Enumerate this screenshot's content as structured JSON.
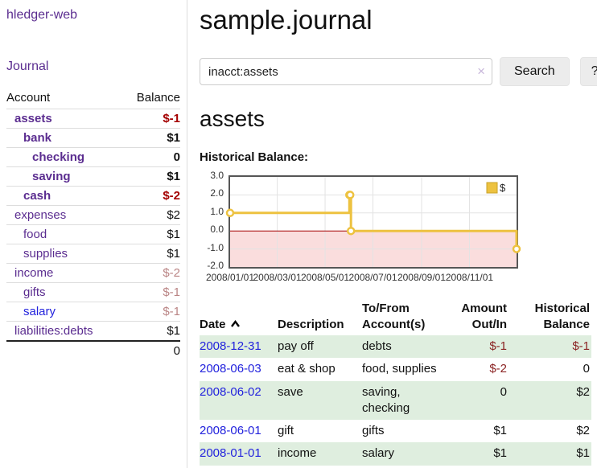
{
  "app": {
    "brand": "hledger-web",
    "nav_journal": "Journal"
  },
  "sidebar": {
    "accounts_header": {
      "account": "Account",
      "balance": "Balance"
    },
    "accounts": [
      {
        "label": "assets",
        "depth": 1,
        "bold": true,
        "blue": false,
        "balance": "$-1",
        "balance_class": "neg"
      },
      {
        "label": "bank",
        "depth": 2,
        "bold": true,
        "blue": false,
        "balance": "$1",
        "balance_class": ""
      },
      {
        "label": "checking",
        "depth": 3,
        "bold": true,
        "blue": false,
        "balance": "0",
        "balance_class": ""
      },
      {
        "label": "saving",
        "depth": 3,
        "bold": true,
        "blue": false,
        "balance": "$1",
        "balance_class": ""
      },
      {
        "label": "cash",
        "depth": 2,
        "bold": true,
        "blue": false,
        "balance": "$-2",
        "balance_class": "neg"
      },
      {
        "label": "expenses",
        "depth": 1,
        "bold": false,
        "blue": false,
        "balance": "$2",
        "balance_class": ""
      },
      {
        "label": "food",
        "depth": 2,
        "bold": false,
        "blue": false,
        "balance": "$1",
        "balance_class": ""
      },
      {
        "label": "supplies",
        "depth": 2,
        "bold": false,
        "blue": false,
        "balance": "$1",
        "balance_class": ""
      },
      {
        "label": "income",
        "depth": 1,
        "bold": false,
        "blue": false,
        "balance": "$-2",
        "balance_class": "rosy"
      },
      {
        "label": "gifts",
        "depth": 2,
        "bold": false,
        "blue": false,
        "balance": "$-1",
        "balance_class": "rosy"
      },
      {
        "label": "salary",
        "depth": 2,
        "bold": false,
        "blue": true,
        "balance": "$-1",
        "balance_class": "rosy"
      },
      {
        "label": "liabilities:debts",
        "depth": 1,
        "bold": false,
        "blue": false,
        "balance": "$1",
        "balance_class": ""
      }
    ],
    "total": "0"
  },
  "header": {
    "title": "sample.journal"
  },
  "search": {
    "query": "inacct:assets",
    "clear_icon": "×",
    "button": "Search",
    "help": "?"
  },
  "account_page": {
    "title": "assets",
    "chart_label": "Historical Balance:"
  },
  "chart_data": {
    "type": "line",
    "step": true,
    "title": "Historical Balance:",
    "legend": "$",
    "legend_position": "top-right",
    "x_range": [
      "2008-01-01",
      "2008-12-31"
    ],
    "ylim": [
      -2.0,
      3.0
    ],
    "yticks": [
      3.0,
      2.0,
      1.0,
      0.0,
      -1.0,
      -2.0
    ],
    "xticks": [
      "2008/01/01",
      "2008/03/01",
      "2008/05/01",
      "2008/07/01",
      "2008/09/01",
      "2008/11/01"
    ],
    "points": [
      {
        "date": "2008-01-01",
        "value": 1
      },
      {
        "date": "2008-06-01",
        "value": 2
      },
      {
        "date": "2008-06-02",
        "value": 2
      },
      {
        "date": "2008-06-03",
        "value": 0
      },
      {
        "date": "2008-12-31",
        "value": -1
      }
    ],
    "grid": true,
    "colors": {
      "series": "#edc240",
      "legend_border": "#c9a227",
      "negative_fill": "#fadddd",
      "zero_line": "#a40000",
      "gridline": "#e3e3e3",
      "plot_border": "#565656"
    }
  },
  "register": {
    "columns": [
      {
        "lines": [
          "Date"
        ]
      },
      {
        "lines": [
          "Description"
        ]
      },
      {
        "lines": [
          "To/From",
          "Account(s)"
        ]
      },
      {
        "lines": [
          "Amount",
          "Out/In"
        ]
      },
      {
        "lines": [
          "Historical",
          "Balance"
        ]
      }
    ],
    "rows": [
      {
        "date": "2008-12-31",
        "description": "pay off",
        "accounts": "debts",
        "amount": "$-1",
        "amount_negative": true,
        "balance": "$-1",
        "balance_negative": true
      },
      {
        "date": "2008-06-03",
        "description": "eat & shop",
        "accounts": "food, supplies",
        "amount": "$-2",
        "amount_negative": true,
        "balance": "0",
        "balance_negative": false
      },
      {
        "date": "2008-06-02",
        "description": "save",
        "accounts": "saving, checking",
        "amount": "0",
        "amount_negative": false,
        "balance": "$2",
        "balance_negative": false
      },
      {
        "date": "2008-06-01",
        "description": "gift",
        "accounts": "gifts",
        "amount": "$1",
        "amount_negative": false,
        "balance": "$2",
        "balance_negative": false
      },
      {
        "date": "2008-01-01",
        "description": "income",
        "accounts": "salary",
        "amount": "$1",
        "amount_negative": false,
        "balance": "$1",
        "balance_negative": false
      }
    ]
  }
}
